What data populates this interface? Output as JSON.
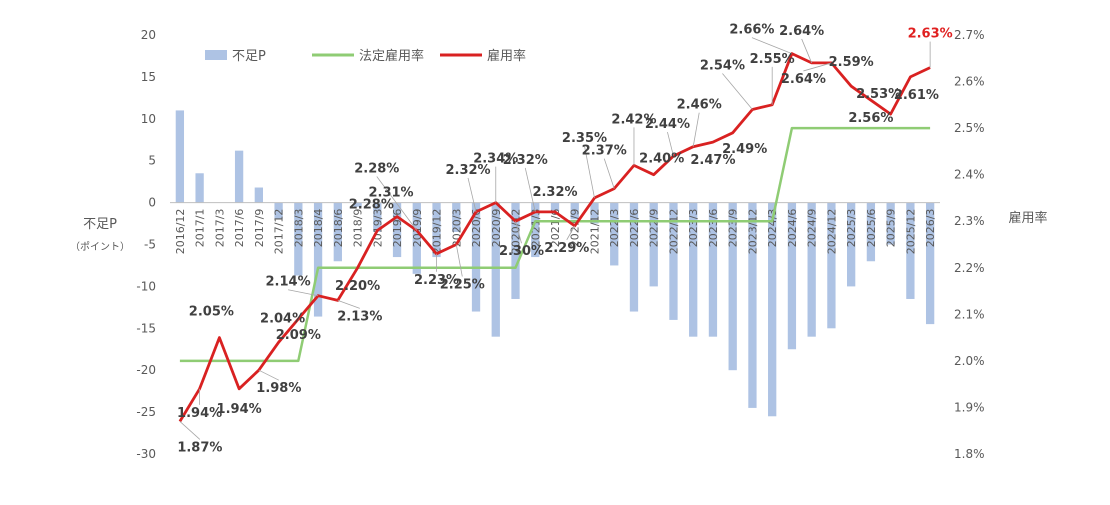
{
  "chart_data": {
    "type": "bar+line",
    "categories": [
      "2016/12",
      "2017/1",
      "2017/3",
      "2017/6",
      "2017/9",
      "2017/12",
      "2018/3",
      "2018/4",
      "2018/6",
      "2018/9",
      "2019/3",
      "2019/6",
      "2019/9",
      "2019/12",
      "2020/3",
      "2020/6",
      "2020/9",
      "2020/12",
      "2021/3",
      "2021/6",
      "2021/9",
      "2021/12",
      "2022/3",
      "2022/6",
      "2022/9",
      "2022/12",
      "2023/3",
      "2023/6",
      "2023/9",
      "2023/12",
      "2024/3",
      "2024/6",
      "2024/9",
      "2024/12",
      "2025/3",
      "2025/6",
      "2025/9",
      "2025/12",
      "2026/3"
    ],
    "series": [
      {
        "name": "不足P",
        "kind": "bar",
        "axis": "left",
        "color": "#aec3e4",
        "values": [
          11,
          3.5,
          0,
          6.2,
          1.8,
          -2,
          -8.7,
          -13.6,
          -7,
          -0.5,
          -3.5,
          -6.5,
          -8.5,
          -6.5,
          -3.5,
          -13,
          -16,
          -11.5,
          -6.5,
          -1,
          -2,
          -2.5,
          -7.5,
          -13,
          -10,
          -14,
          -16,
          -16,
          -20,
          -24.5,
          -25.5,
          -17.5,
          -16,
          -15,
          -10,
          -7,
          -5,
          -11.5,
          -14.5
        ]
      },
      {
        "name": "法定雇用率",
        "kind": "line",
        "axis": "right",
        "color": "#8fcc74",
        "values": [
          2.0,
          2.0,
          2.0,
          2.0,
          2.0,
          2.0,
          2.0,
          2.2,
          2.2,
          2.2,
          2.2,
          2.2,
          2.2,
          2.2,
          2.2,
          2.2,
          2.2,
          2.2,
          2.3,
          2.3,
          2.3,
          2.3,
          2.3,
          2.3,
          2.3,
          2.3,
          2.3,
          2.3,
          2.3,
          2.3,
          2.3,
          2.5,
          2.5,
          2.5,
          2.5,
          2.5,
          2.5,
          2.5,
          2.5
        ]
      },
      {
        "name": "雇用率",
        "kind": "line",
        "axis": "right",
        "color": "#d92121",
        "values": [
          1.87,
          1.94,
          2.05,
          1.94,
          1.98,
          2.04,
          2.09,
          2.14,
          2.13,
          2.2,
          2.28,
          2.31,
          2.28,
          2.23,
          2.25,
          2.32,
          2.34,
          2.3,
          2.32,
          2.32,
          2.29,
          2.35,
          2.37,
          2.42,
          2.4,
          2.44,
          2.46,
          2.47,
          2.49,
          2.54,
          2.55,
          2.66,
          2.64,
          2.64,
          2.59,
          2.56,
          2.53,
          2.61,
          2.63
        ]
      }
    ],
    "data_labels": [
      {
        "i": 0,
        "text": "1.87%"
      },
      {
        "i": 1,
        "text": "1.94%"
      },
      {
        "i": 2,
        "text": "2.05%"
      },
      {
        "i": 3,
        "text": "1.94%"
      },
      {
        "i": 4,
        "text": "1.98%"
      },
      {
        "i": 5,
        "text": "2.04%"
      },
      {
        "i": 6,
        "text": "2.09%"
      },
      {
        "i": 7,
        "text": "2.14%"
      },
      {
        "i": 8,
        "text": "2.13%"
      },
      {
        "i": 9,
        "text": "2.20%"
      },
      {
        "i": 10,
        "text": "2.28%"
      },
      {
        "i": 11,
        "text": "2.31%"
      },
      {
        "i": 12,
        "text": "2.28%"
      },
      {
        "i": 13,
        "text": "2.23%"
      },
      {
        "i": 14,
        "text": "2.25%"
      },
      {
        "i": 15,
        "text": "2.32%"
      },
      {
        "i": 16,
        "text": "2.34%"
      },
      {
        "i": 17,
        "text": "2.30%"
      },
      {
        "i": 18,
        "text": "2.32%"
      },
      {
        "i": 19,
        "text": "2.32%"
      },
      {
        "i": 20,
        "text": "2.29%"
      },
      {
        "i": 21,
        "text": "2.35%"
      },
      {
        "i": 22,
        "text": "2.37%"
      },
      {
        "i": 23,
        "text": "2.42%"
      },
      {
        "i": 24,
        "text": "2.40%"
      },
      {
        "i": 25,
        "text": "2.44%"
      },
      {
        "i": 26,
        "text": "2.46%"
      },
      {
        "i": 27,
        "text": "2.47%"
      },
      {
        "i": 28,
        "text": "2.49%"
      },
      {
        "i": 29,
        "text": "2.54%"
      },
      {
        "i": 30,
        "text": "2.55%"
      },
      {
        "i": 31,
        "text": "2.66%"
      },
      {
        "i": 32,
        "text": "2.64%"
      },
      {
        "i": 33,
        "text": "2.64%"
      },
      {
        "i": 34,
        "text": "2.59%"
      },
      {
        "i": 35,
        "text": "2.56%"
      },
      {
        "i": 36,
        "text": "2.53%"
      },
      {
        "i": 37,
        "text": "2.61%"
      },
      {
        "i": 38,
        "text": "2.63%",
        "highlight": true
      }
    ],
    "y_left": {
      "title": "不足P",
      "subtitle": "（ポイント）",
      "range": [
        -30,
        20
      ],
      "ticks": [
        "20",
        "15",
        "10",
        "5",
        "0",
        "-5",
        "-10",
        "-15",
        "-20",
        "-25",
        "-30"
      ],
      "tick_values": [
        20,
        15,
        10,
        5,
        0,
        -5,
        -10,
        -15,
        -20,
        -25,
        -30
      ]
    },
    "y_right": {
      "title": "雇用率",
      "range": [
        1.8,
        2.7
      ],
      "ticks": [
        "2.7%",
        "2.6%",
        "2.5%",
        "2.4%",
        "2.3%",
        "2.2%",
        "2.1%",
        "2.0%",
        "1.9%",
        "1.8%"
      ],
      "tick_values": [
        2.7,
        2.6,
        2.5,
        2.4,
        2.3,
        2.2,
        2.1,
        2.0,
        1.9,
        1.8
      ]
    },
    "legend": {
      "placement": "top-left",
      "items": [
        "不足P",
        "法定雇用率",
        "雇用率"
      ]
    },
    "highlight_color": "#e02020",
    "grid": false
  }
}
